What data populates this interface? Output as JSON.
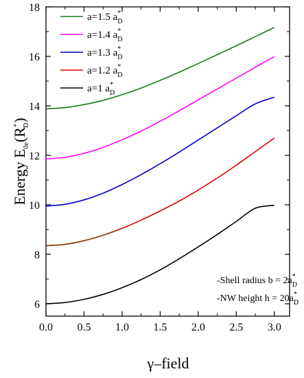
{
  "chart_data": {
    "type": "line",
    "title": "",
    "xlabel": "γ–field",
    "ylabel": "Energy E0e(R*D)",
    "ylabel_parts": {
      "main": "Energy E",
      "sub": "0e",
      "paren_open": "(R",
      "sup": "*",
      "sub2": "D",
      "paren_close": ")"
    },
    "xlim": [
      0.0,
      3.2
    ],
    "ylim": [
      5.5,
      18.0
    ],
    "xticks": [
      0.0,
      0.5,
      1.0,
      1.5,
      2.0,
      2.5,
      3.0
    ],
    "xtick_labels": [
      "0.0",
      "0.5",
      "1.0",
      "1.5",
      "2.0",
      "2.5",
      "3.0"
    ],
    "yticks": [
      6,
      8,
      10,
      12,
      14,
      16,
      18
    ],
    "ytick_labels": [
      "6",
      "8",
      "10",
      "12",
      "14",
      "16",
      "18"
    ],
    "grid": false,
    "legend_position": "top-left",
    "x": [
      0.0,
      0.25,
      0.5,
      0.75,
      1.0,
      1.25,
      1.5,
      1.75,
      2.0,
      2.25,
      2.5,
      2.75,
      3.0
    ],
    "series": [
      {
        "name": "a=1.5 a*D",
        "label_main": "a=1.5 a",
        "label_sup": "*",
        "label_sub": "D",
        "color": "#1a7a1a",
        "values": [
          13.88,
          13.93,
          14.05,
          14.22,
          14.45,
          14.72,
          15.03,
          15.36,
          15.71,
          16.07,
          16.43,
          16.8,
          17.17
        ]
      },
      {
        "name": "a=1.4 a*D",
        "label_main": "a=1.4 a",
        "label_sup": "*",
        "label_sub": "D",
        "color": "#ff00ff",
        "values": [
          11.85,
          11.92,
          12.08,
          12.32,
          12.63,
          12.98,
          13.38,
          13.8,
          14.24,
          14.68,
          15.12,
          15.56,
          15.99
        ]
      },
      {
        "name": "a=1.3 a*D",
        "label_main": "a=1.3 a",
        "label_sup": "*",
        "label_sub": "D",
        "color": "#0000cc",
        "values": [
          9.95,
          10.02,
          10.2,
          10.47,
          10.82,
          11.22,
          11.66,
          12.13,
          12.62,
          13.11,
          13.6,
          14.08,
          14.35
        ]
      },
      {
        "name": "a=1.2 a*D",
        "label_main": "a=1.2 a",
        "label_sup": "*",
        "label_sub": "D",
        "color": "#e00000",
        "values": [
          8.35,
          8.4,
          8.55,
          8.77,
          9.05,
          9.38,
          9.75,
          10.15,
          10.6,
          11.08,
          11.6,
          12.15,
          12.7
        ]
      },
      {
        "name": "a=1 a*D",
        "label_main": "a=1 a",
        "label_sup": "*",
        "label_sub": "D",
        "color": "#000000",
        "values": [
          6.0,
          6.05,
          6.18,
          6.38,
          6.65,
          6.98,
          7.37,
          7.82,
          8.3,
          8.8,
          9.33,
          9.86,
          9.98
        ]
      }
    ],
    "overlay_series": [
      {
        "over": 3,
        "color": "#8b4513",
        "from_x": 0.0,
        "to_x": 1.0
      }
    ],
    "annotations": [
      {
        "main": "-Shell radius b = 2a",
        "sup": "*",
        "sub": "D"
      },
      {
        "main": "-NW height h = 20a",
        "sup": "*",
        "sub": "D"
      }
    ]
  }
}
